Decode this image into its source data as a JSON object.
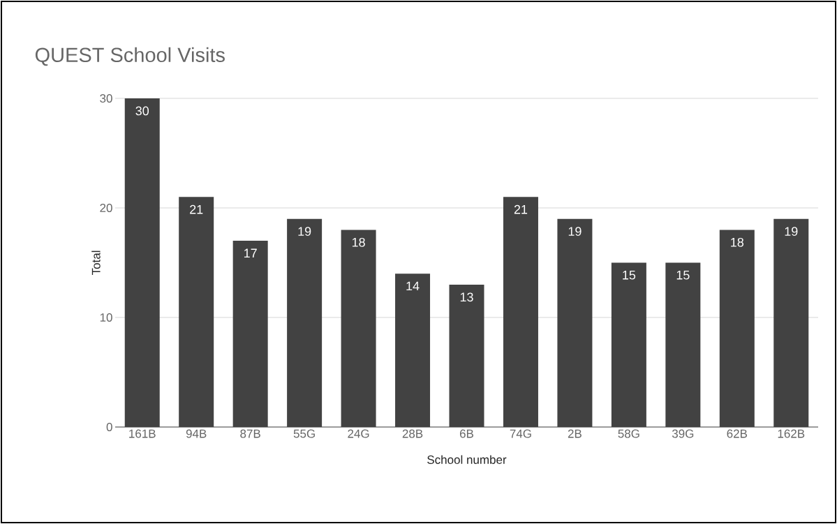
{
  "chart_data": {
    "type": "bar",
    "title": "QUEST School Visits",
    "xlabel": "School number",
    "ylabel": "Total",
    "categories": [
      "161B",
      "94B",
      "87B",
      "55G",
      "24G",
      "28B",
      "6B",
      "74G",
      "2B",
      "58G",
      "39G",
      "62B",
      "162B"
    ],
    "values": [
      30,
      21,
      17,
      19,
      18,
      14,
      13,
      21,
      19,
      15,
      15,
      18,
      19
    ],
    "color": "#424242",
    "ylim": [
      0,
      30
    ],
    "yticks": [
      0,
      10,
      20,
      30
    ],
    "grid": "y",
    "data_labels": true
  }
}
